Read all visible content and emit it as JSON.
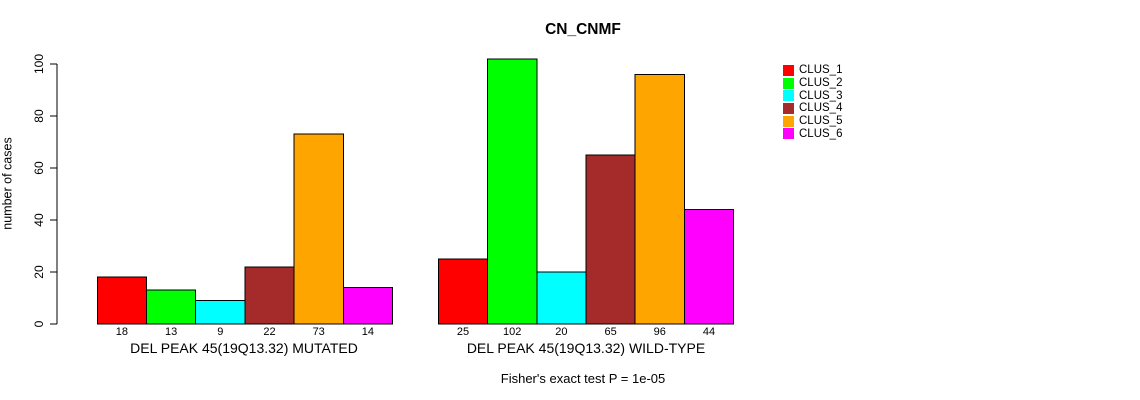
{
  "chart_data": {
    "type": "bar",
    "title": "CN_CNMF",
    "ylabel": "number of cases",
    "xlabel": "",
    "ylim": [
      0,
      102
    ],
    "yticks": [
      0,
      20,
      40,
      60,
      80,
      100
    ],
    "grid": false,
    "legend_position": "right",
    "clusters": [
      {
        "name": "CLUS_1",
        "color": "#ff0000"
      },
      {
        "name": "CLUS_2",
        "color": "#00ff00"
      },
      {
        "name": "CLUS_3",
        "color": "#00ffff"
      },
      {
        "name": "CLUS_4",
        "color": "#a52a2a"
      },
      {
        "name": "CLUS_5",
        "color": "#ffa500"
      },
      {
        "name": "CLUS_6",
        "color": "#ff00ff"
      }
    ],
    "groups": [
      {
        "label": "DEL PEAK 45(19Q13.32) MUTATED",
        "values": [
          18,
          13,
          9,
          22,
          73,
          14
        ]
      },
      {
        "label": "DEL PEAK 45(19Q13.32) WILD-TYPE",
        "values": [
          25,
          102,
          20,
          65,
          96,
          44
        ]
      }
    ],
    "annotation": "Fisher's exact test P = 1e-05",
    "colors": {
      "bar_border": "#000000",
      "axis": "#000000",
      "text": "#000000",
      "background": "#ffffff"
    }
  }
}
